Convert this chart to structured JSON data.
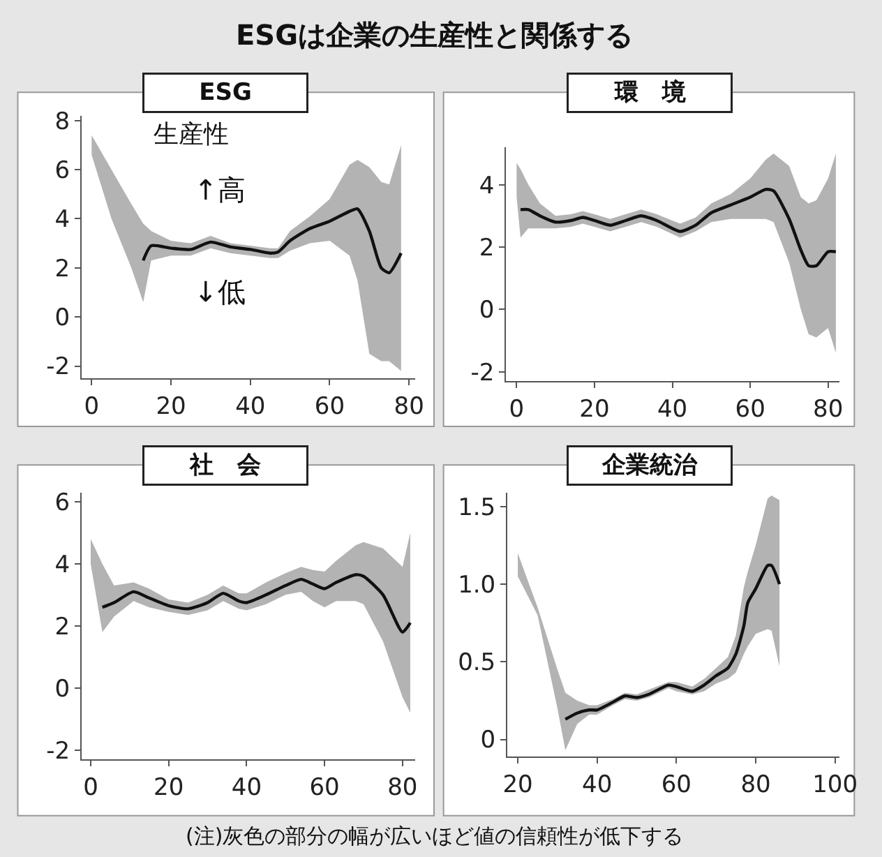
{
  "chart_data": [
    {
      "type": "other",
      "title": "ESGは企業の生産性と関係する",
      "annotations": [
        "(注)灰色の部分の幅が広いほど値の信頼性が低下する"
      ]
    },
    {
      "type": "line",
      "title": "ESG",
      "annotations": [
        "生産性",
        "↑高",
        "↓低"
      ],
      "xlim": [
        -2.5,
        81.5
      ],
      "ylim": [
        -2.5,
        8.2
      ],
      "xticks": [
        0,
        20,
        40,
        60,
        80
      ],
      "yticks": [
        -2,
        0,
        2,
        4,
        6,
        8
      ],
      "series": [
        {
          "color": "#111111",
          "x": [
            0,
            5,
            10,
            13,
            15,
            20,
            25,
            30,
            35,
            40,
            45,
            47,
            50,
            55,
            60,
            65,
            67,
            70,
            73,
            75,
            78
          ],
          "values": [
            null,
            null,
            null,
            2.3,
            2.9,
            2.8,
            2.75,
            3.05,
            2.85,
            2.75,
            2.6,
            2.65,
            3.1,
            3.6,
            3.9,
            4.3,
            4.4,
            3.5,
            2.0,
            1.8,
            2.6
          ],
          "upper": [
            7.4,
            6.0,
            4.6,
            3.8,
            3.5,
            3.1,
            3.0,
            3.3,
            3.0,
            2.9,
            2.8,
            2.8,
            3.5,
            4.1,
            4.8,
            6.2,
            6.4,
            6.1,
            5.5,
            5.4,
            7.0
          ],
          "lower": [
            6.6,
            4.0,
            2.0,
            0.6,
            2.3,
            2.5,
            2.5,
            2.8,
            2.6,
            2.5,
            2.4,
            2.4,
            2.7,
            3.0,
            3.1,
            2.5,
            1.5,
            -1.5,
            -1.8,
            -1.8,
            -2.2
          ]
        }
      ]
    },
    {
      "type": "line",
      "title": "環　境",
      "xlim": [
        -2.7,
        82.9
      ],
      "ylim": [
        -2.3,
        5.2
      ],
      "xticks": [
        0,
        20,
        40,
        60,
        80
      ],
      "yticks": [
        -2,
        0,
        2,
        4
      ],
      "series": [
        {
          "color": "#111111",
          "x": [
            0,
            1,
            3,
            6,
            10,
            14,
            17,
            20,
            24,
            28,
            32,
            36,
            42,
            46,
            50,
            55,
            60,
            64,
            66,
            70,
            73,
            75,
            77,
            80,
            82
          ],
          "values": [
            null,
            3.2,
            3.2,
            3.0,
            2.8,
            2.85,
            2.95,
            2.85,
            2.7,
            2.85,
            3.0,
            2.85,
            2.5,
            2.7,
            3.1,
            3.35,
            3.6,
            3.85,
            3.8,
            2.9,
            1.9,
            1.4,
            1.4,
            1.85,
            1.85
          ],
          "upper": [
            4.7,
            4.5,
            4.0,
            3.4,
            3.0,
            3.05,
            3.15,
            3.05,
            2.9,
            3.05,
            3.2,
            3.05,
            2.75,
            2.95,
            3.4,
            3.7,
            4.2,
            4.8,
            5.0,
            4.6,
            3.6,
            3.4,
            3.5,
            4.2,
            5.0
          ],
          "lower": [
            3.6,
            2.3,
            2.6,
            2.6,
            2.6,
            2.65,
            2.75,
            2.65,
            2.5,
            2.65,
            2.8,
            2.65,
            2.3,
            2.5,
            2.8,
            2.9,
            2.9,
            2.9,
            2.8,
            1.5,
            0.0,
            -0.8,
            -0.9,
            -0.6,
            -1.4
          ]
        }
      ]
    },
    {
      "type": "line",
      "title": "社　会",
      "xlim": [
        -2.3,
        83.2
      ],
      "ylim": [
        -2.3,
        6.3
      ],
      "xticks": [
        0,
        20,
        40,
        60,
        80
      ],
      "yticks": [
        -2,
        0,
        2,
        4,
        6
      ],
      "series": [
        {
          "color": "#111111",
          "x": [
            0,
            3,
            6,
            11,
            15,
            20,
            25,
            30,
            34,
            38,
            40,
            45,
            50,
            54,
            57,
            60,
            63,
            68,
            70,
            75,
            80,
            82
          ],
          "values": [
            null,
            2.6,
            2.75,
            3.1,
            2.9,
            2.65,
            2.55,
            2.75,
            3.05,
            2.8,
            2.75,
            3.0,
            3.3,
            3.5,
            3.35,
            3.2,
            3.4,
            3.65,
            3.6,
            3.0,
            1.8,
            2.1
          ],
          "upper": [
            4.8,
            4.0,
            3.3,
            3.4,
            3.2,
            2.85,
            2.75,
            3.0,
            3.3,
            3.05,
            3.05,
            3.4,
            3.7,
            3.9,
            3.8,
            3.75,
            4.1,
            4.6,
            4.7,
            4.5,
            3.9,
            5.0
          ],
          "lower": [
            4.0,
            1.8,
            2.3,
            2.8,
            2.6,
            2.45,
            2.35,
            2.5,
            2.8,
            2.55,
            2.5,
            2.7,
            3.0,
            3.1,
            2.8,
            2.6,
            2.8,
            2.8,
            2.7,
            1.5,
            -0.3,
            -0.8
          ]
        }
      ]
    },
    {
      "type": "line",
      "title": "企業統治",
      "xlim": [
        17.4,
        101.1
      ],
      "ylim": [
        -0.11,
        1.59
      ],
      "xticks": [
        20,
        40,
        60,
        80,
        100
      ],
      "yticks": [
        0,
        0.5,
        {
          "value": 1,
          "label": "1.0"
        },
        1.5
      ],
      "series": [
        {
          "color": "#111111",
          "x": [
            20,
            25,
            30,
            32,
            35,
            38,
            40,
            44,
            47,
            50,
            53,
            58,
            60,
            64,
            67,
            70,
            73,
            75,
            77,
            78,
            80,
            83,
            84,
            86
          ],
          "values": [
            null,
            null,
            null,
            0.13,
            0.17,
            0.19,
            0.19,
            0.24,
            0.28,
            0.27,
            0.29,
            0.35,
            0.34,
            0.31,
            0.35,
            0.41,
            0.46,
            0.55,
            0.73,
            0.88,
            0.97,
            1.12,
            1.12,
            1.0
          ],
          "upper": [
            1.2,
            0.85,
            0.45,
            0.3,
            0.25,
            0.22,
            0.22,
            0.26,
            0.3,
            0.29,
            0.32,
            0.37,
            0.37,
            0.34,
            0.39,
            0.46,
            0.53,
            0.67,
            0.98,
            1.08,
            1.25,
            1.55,
            1.57,
            1.54
          ],
          "lower": [
            1.05,
            0.8,
            0.2,
            -0.07,
            0.1,
            0.16,
            0.16,
            0.22,
            0.26,
            0.25,
            0.27,
            0.33,
            0.31,
            0.29,
            0.31,
            0.36,
            0.39,
            0.43,
            0.55,
            0.6,
            0.68,
            0.71,
            0.7,
            0.47
          ]
        }
      ]
    }
  ]
}
